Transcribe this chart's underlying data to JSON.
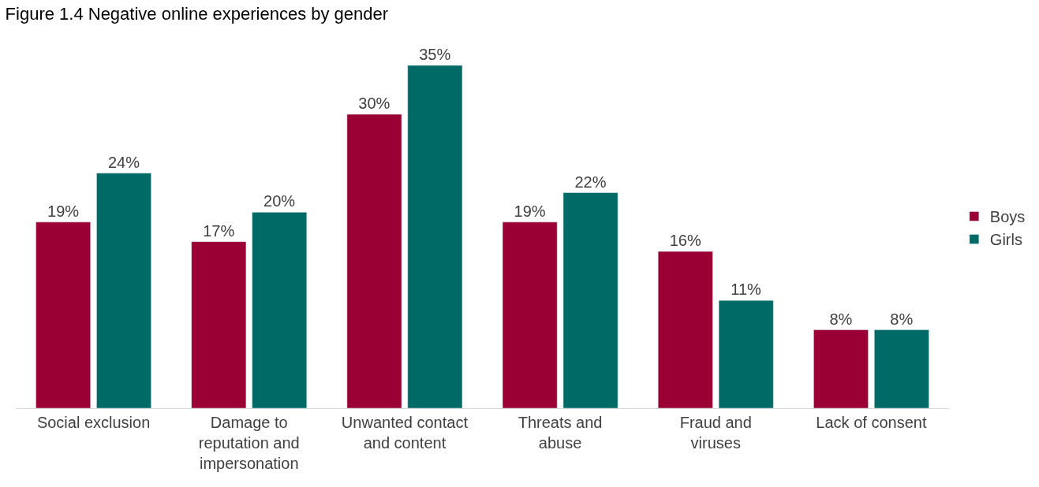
{
  "chart_data": {
    "type": "bar",
    "title": "Figure 1.4 Negative online experiences by gender",
    "categories": [
      "Social exclusion",
      "Damage to reputation and impersonation",
      "Unwanted contact and content",
      "Threats and abuse",
      "Fraud and viruses",
      "Lack of consent"
    ],
    "series": [
      {
        "name": "Boys",
        "color": "#9b0034",
        "values": [
          19,
          17,
          30,
          19,
          16,
          8
        ],
        "value_labels": [
          "19%",
          "17%",
          "30%",
          "19%",
          "16%",
          "8%"
        ]
      },
      {
        "name": "Girls",
        "color": "#006a66",
        "values": [
          24,
          20,
          35,
          22,
          11,
          8
        ],
        "value_labels": [
          "24%",
          "20%",
          "35%",
          "22%",
          "11%",
          "8%"
        ]
      }
    ],
    "tick_labels": "x",
    "legend": "right"
  }
}
